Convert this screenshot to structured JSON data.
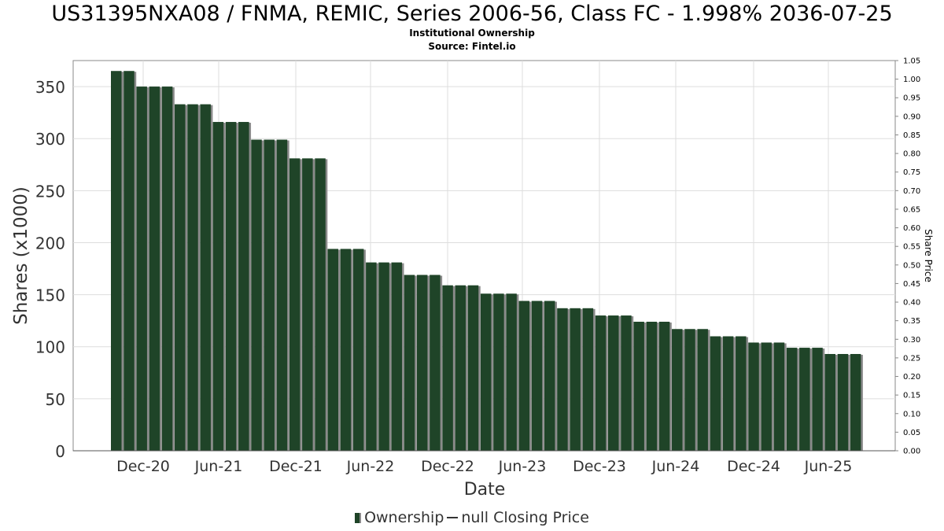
{
  "header": {
    "title": "US31395NXA08 / FNMA, REMIC, Series 2006-56, Class FC - 1.998% 2036-07-25",
    "subtitle1": "Institutional Ownership",
    "subtitle2": "Source: Fintel.io"
  },
  "legend": {
    "ownership_label": "Ownership",
    "price_label": "null Closing Price"
  },
  "colors": {
    "bar": "#1f4428",
    "bar_shadow": "#8a8a8a",
    "grid": "#dddddd",
    "axis": "#888888"
  },
  "chart_data": {
    "type": "bar",
    "xlabel": "Date",
    "ylabel": "Shares (x1000)",
    "y2label": "Share Price",
    "ylim": [
      0,
      375
    ],
    "y2lim": [
      0,
      1.05
    ],
    "yticks": [
      0,
      50,
      100,
      150,
      200,
      250,
      300,
      350
    ],
    "y2ticks": [
      "0.00",
      "0.05",
      "0.10",
      "0.15",
      "0.20",
      "0.25",
      "0.30",
      "0.35",
      "0.40",
      "0.45",
      "0.50",
      "0.55",
      "0.60",
      "0.65",
      "0.70",
      "0.75",
      "0.80",
      "0.85",
      "0.90",
      "0.95",
      "1.00",
      "1.05"
    ],
    "xtick_labels": [
      "Dec-20",
      "Jun-21",
      "Dec-21",
      "Jun-22",
      "Dec-22",
      "Jun-23",
      "Dec-23",
      "Jun-24",
      "Dec-24",
      "Jun-25"
    ],
    "grid": true,
    "legend_position": "bottom",
    "series": [
      {
        "name": "Ownership",
        "values": [
          365,
          365,
          350,
          350,
          350,
          333,
          333,
          333,
          316,
          316,
          316,
          299,
          299,
          299,
          281,
          281,
          281,
          194,
          194,
          194,
          181,
          181,
          181,
          169,
          169,
          169,
          159,
          159,
          159,
          151,
          151,
          151,
          144,
          144,
          144,
          137,
          137,
          137,
          130,
          130,
          130,
          124,
          124,
          124,
          117,
          117,
          117,
          110,
          110,
          110,
          104,
          104,
          104,
          99,
          99,
          99,
          93,
          93,
          93
        ]
      }
    ]
  }
}
